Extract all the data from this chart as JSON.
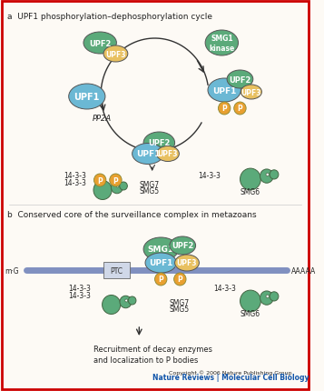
{
  "title_a": "a  UPF1 phosphorylation–dephosphorylation cycle",
  "title_b": "b  Conserved core of the surveillance complex in metazoans",
  "copyright": "Copyright © 2006 Nature Publishing Group",
  "nature_reviews": "Nature Reviews | Molecular Cell Biology",
  "bg_color": "#FDFAF5",
  "border_color": "#CC0000",
  "upf1_color": "#6BB8D4",
  "upf2_color": "#5BAA7A",
  "upf3_color": "#E8C060",
  "smg1_color": "#5BAA7A",
  "p_color": "#E8A030",
  "smg567_color": "#5BAA7A",
  "arrow_color": "#333333",
  "text_color": "#222222",
  "mrna_color": "#8090C0",
  "label_14_33": "14-3-3",
  "label_pp2a": "PP2A",
  "label_smg6": "SMG6",
  "label_smg7": "SMG7",
  "label_smg5": "SMG5",
  "label_ptc": "PTC",
  "label_m7g": "m·G",
  "label_aaaaa": "AAAAA",
  "label_recruit": "Recruitment of decay enzymes\nand localization to P bodies"
}
